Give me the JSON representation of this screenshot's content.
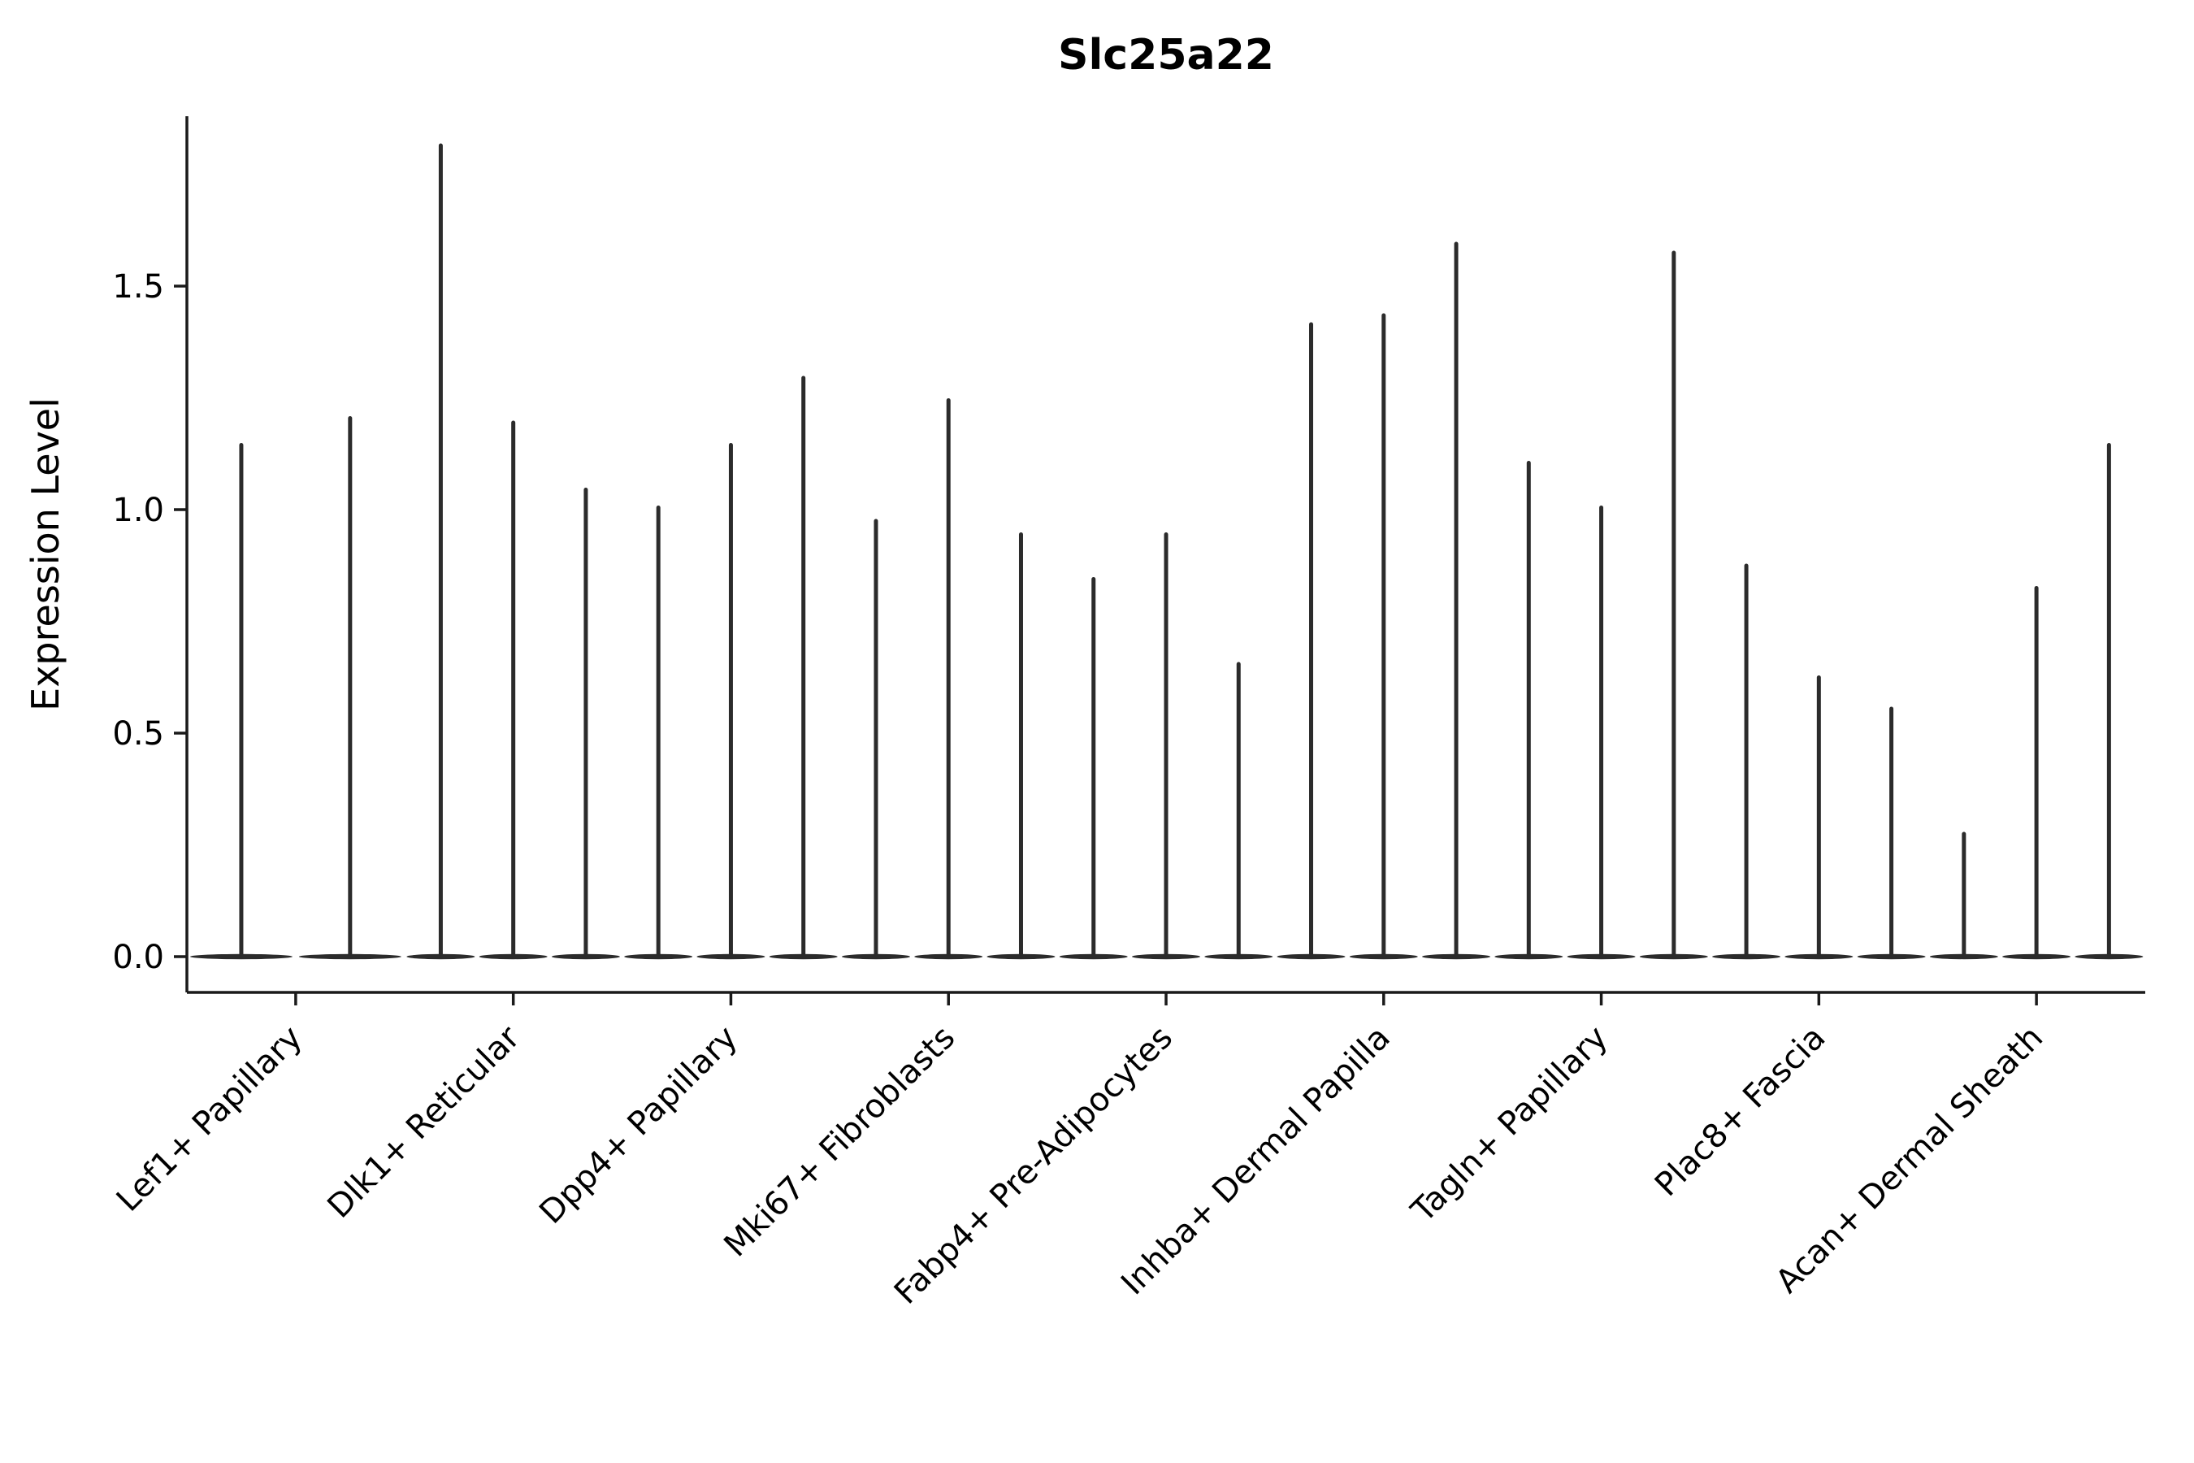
{
  "figure": {
    "background_color": "#ffffff",
    "ink_color": "#2b2b2b",
    "spine_color": "#1a1a1a"
  },
  "chart_data": {
    "type": "violin",
    "title": "Slc25a22",
    "xlabel": "",
    "ylabel": "Expression Level",
    "grid": false,
    "legend": "none",
    "ylim": [
      -0.08,
      1.88
    ],
    "yticks": [
      0.0,
      0.5,
      1.0,
      1.5
    ],
    "ytick_labels": [
      "0.0",
      "0.5",
      "1.0",
      "1.5"
    ],
    "baseline_value": 0.0,
    "categories": [
      "Lef1+ Papillary",
      "Dlk1+ Reticular",
      "Dpp4+ Papillary",
      "Mki67+ Fibroblasts",
      "Fabp4+ Pre-Adipocytes",
      "Inhba+ Dermal Papilla",
      "Tagln+ Papillary",
      "Plac8+ Fascia",
      "Acan+ Dermal Sheath"
    ],
    "groups": [
      {
        "category": "Lef1+ Papillary",
        "violin_maxima": [
          1.15,
          1.21
        ]
      },
      {
        "category": "Dlk1+ Reticular",
        "violin_maxima": [
          1.82,
          1.2,
          1.05
        ]
      },
      {
        "category": "Dpp4+ Papillary",
        "violin_maxima": [
          1.01,
          1.15,
          1.3
        ]
      },
      {
        "category": "Mki67+ Fibroblasts",
        "violin_maxima": [
          0.98,
          1.25,
          0.95
        ]
      },
      {
        "category": "Fabp4+ Pre-Adipocytes",
        "violin_maxima": [
          0.85,
          0.95,
          0.66
        ]
      },
      {
        "category": "Inhba+ Dermal Papilla",
        "violin_maxima": [
          1.42,
          1.44,
          1.6
        ]
      },
      {
        "category": "Tagln+ Papillary",
        "violin_maxima": [
          1.11,
          1.01,
          1.58
        ]
      },
      {
        "category": "Plac8+ Fascia",
        "violin_maxima": [
          0.88,
          0.63,
          0.56
        ]
      },
      {
        "category": "Acan+ Dermal Sheath",
        "violin_maxima": [
          0.28,
          0.83,
          1.15
        ]
      }
    ]
  }
}
